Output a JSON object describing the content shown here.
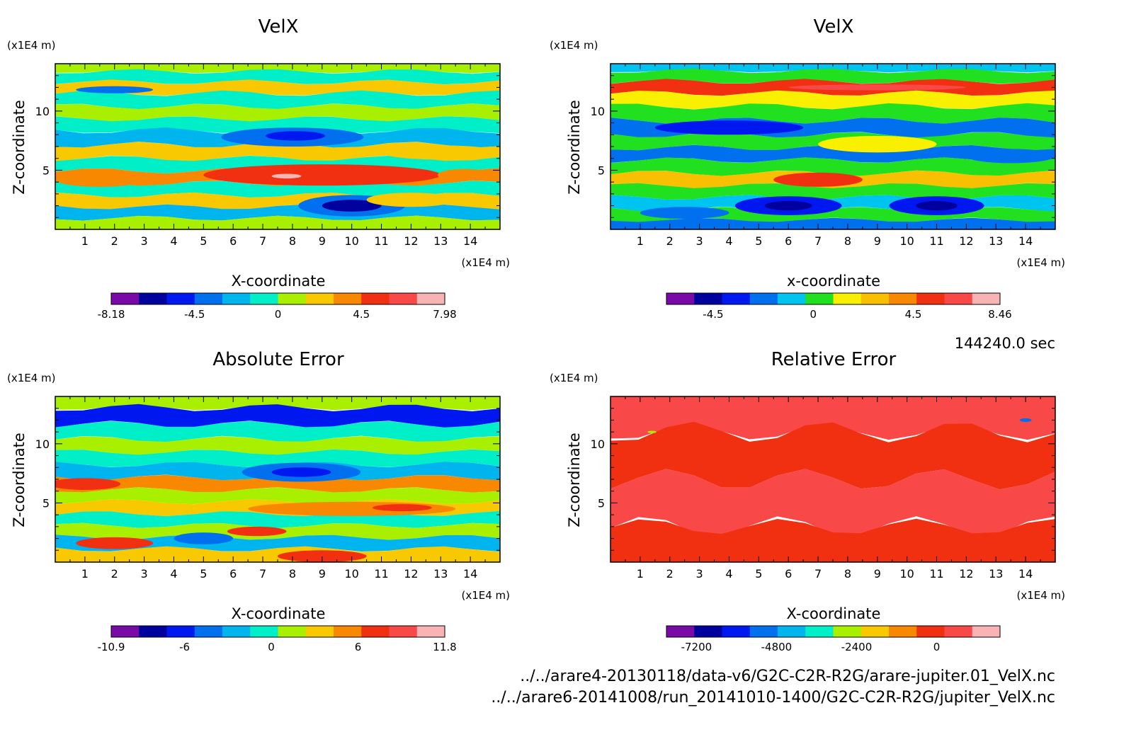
{
  "timestamp": "144240.0 sec",
  "footer": {
    "line1": "../../arare4-20130118/data-v6/G2C-C2R-R2G/arare-jupiter.01_VelX.nc",
    "line2": "../../arare6-20141008/run_20141010-1400/G2C-C2R-R2G/jupiter_VelX.nc"
  },
  "chart_data": [
    {
      "type": "heatmap",
      "title": "VelX",
      "xlabel": "X-coordinate",
      "ylabel": "Z-coordinate",
      "x_unit": "(x1E4 m)",
      "y_unit": "(x1E4 m)",
      "xlim": [
        0,
        15
      ],
      "ylim": [
        0,
        14
      ],
      "x_ticks": [
        "1",
        "2",
        "3",
        "4",
        "5",
        "6",
        "7",
        "8",
        "9",
        "10",
        "11",
        "12",
        "13",
        "14"
      ],
      "y_ticks": [
        "5",
        "10"
      ],
      "colorbar": {
        "labels": [
          "-8.18",
          "-4.5",
          "0",
          "4.5",
          "7.98"
        ],
        "colors": [
          "#7a0aa8",
          "#00009e",
          "#0018f0",
          "#0070ee",
          "#00b4ee",
          "#00eec8",
          "#a8f000",
          "#f8c800",
          "#f88800",
          "#f03010",
          "#f84848",
          "#f8b4b4"
        ]
      },
      "bands": [
        {
          "z": 13.8,
          "color": "#a8f000"
        },
        {
          "z": 12.9,
          "color": "#00eec8"
        },
        {
          "z": 12.0,
          "color": "#f8c800"
        },
        {
          "z": 11.0,
          "color": "#00eec8"
        },
        {
          "z": 9.8,
          "color": "#a8f000"
        },
        {
          "z": 8.9,
          "color": "#00eec8"
        },
        {
          "z": 7.8,
          "color": "#00b4ee"
        },
        {
          "z": 6.5,
          "color": "#f8c800"
        },
        {
          "z": 5.5,
          "color": "#00eec8"
        },
        {
          "z": 4.4,
          "color": "#f88800"
        },
        {
          "z": 3.4,
          "color": "#00eec8"
        },
        {
          "z": 2.4,
          "color": "#f8c800"
        },
        {
          "z": 1.4,
          "color": "#00b4ee"
        },
        {
          "z": 0.5,
          "color": "#a8f000"
        }
      ],
      "blobs": [
        {
          "cx": 9.0,
          "cz": 4.6,
          "rx": 4.0,
          "rz": 0.9,
          "color": "#f03010"
        },
        {
          "cx": 7.8,
          "cz": 4.5,
          "rx": 0.5,
          "rz": 0.2,
          "color": "#f8b4b4"
        },
        {
          "cx": 10.0,
          "cz": 2.0,
          "rx": 1.8,
          "rz": 0.9,
          "color": "#0070ee"
        },
        {
          "cx": 10.0,
          "cz": 2.0,
          "rx": 1.0,
          "rz": 0.5,
          "color": "#00009e"
        },
        {
          "cx": 8.0,
          "cz": 7.8,
          "rx": 2.4,
          "rz": 0.8,
          "color": "#0070ee"
        },
        {
          "cx": 8.1,
          "cz": 7.9,
          "rx": 1.0,
          "rz": 0.4,
          "color": "#0018f0"
        },
        {
          "cx": 13.0,
          "cz": 6.5,
          "rx": 2.0,
          "rz": 0.6,
          "color": "#f8c800"
        },
        {
          "cx": 1.5,
          "cz": 4.2,
          "rx": 1.5,
          "rz": 0.6,
          "color": "#f88800"
        },
        {
          "cx": 12.0,
          "cz": 2.5,
          "rx": 1.5,
          "rz": 0.6,
          "color": "#f8c800"
        },
        {
          "cx": 2.0,
          "cz": 11.8,
          "rx": 1.3,
          "rz": 0.3,
          "color": "#0070ee"
        },
        {
          "cx": 13.8,
          "cz": 4.6,
          "rx": 0.9,
          "rz": 0.5,
          "color": "#f88800"
        }
      ]
    },
    {
      "type": "heatmap",
      "title": "VelX",
      "xlabel": "x-coordinate",
      "ylabel": "Z-coordinate",
      "x_unit": "(x1E4 m)",
      "y_unit": "(x1E4 m)",
      "xlim": [
        0,
        15
      ],
      "ylim": [
        0,
        14
      ],
      "x_ticks": [
        "1",
        "2",
        "3",
        "4",
        "5",
        "6",
        "7",
        "8",
        "9",
        "10",
        "11",
        "12",
        "13",
        "14"
      ],
      "y_ticks": [
        "5",
        "10"
      ],
      "colorbar": {
        "labels": [
          "-4.5",
          "0",
          "4.5",
          "8.46"
        ],
        "colors": [
          "#7a0aa8",
          "#00009e",
          "#0018f0",
          "#0070ee",
          "#00c4f0",
          "#20e020",
          "#f8f000",
          "#f8c000",
          "#f88800",
          "#f03010",
          "#f84848",
          "#f8b4b4"
        ]
      },
      "bands": [
        {
          "z": 13.8,
          "color": "#00c4f0"
        },
        {
          "z": 13.0,
          "color": "#20e020"
        },
        {
          "z": 12.0,
          "color": "#f03010"
        },
        {
          "z": 11.0,
          "color": "#f8f000"
        },
        {
          "z": 9.8,
          "color": "#20e020"
        },
        {
          "z": 8.6,
          "color": "#0070ee"
        },
        {
          "z": 7.4,
          "color": "#20e020"
        },
        {
          "z": 6.4,
          "color": "#0070ee"
        },
        {
          "z": 5.3,
          "color": "#20e020"
        },
        {
          "z": 4.2,
          "color": "#f8c000"
        },
        {
          "z": 3.2,
          "color": "#20e020"
        },
        {
          "z": 2.2,
          "color": "#00c4f0"
        },
        {
          "z": 1.2,
          "color": "#20e020"
        },
        {
          "z": 0.4,
          "color": "#0070ee"
        }
      ],
      "blobs": [
        {
          "cx": 4.0,
          "cz": 8.6,
          "rx": 2.5,
          "rz": 0.6,
          "color": "#0018f0"
        },
        {
          "cx": 9.0,
          "cz": 7.2,
          "rx": 2.0,
          "rz": 0.7,
          "color": "#f8f000"
        },
        {
          "cx": 13.5,
          "cz": 6.2,
          "rx": 1.5,
          "rz": 0.6,
          "color": "#0070ee"
        },
        {
          "cx": 7.0,
          "cz": 4.2,
          "rx": 1.5,
          "rz": 0.6,
          "color": "#f03010"
        },
        {
          "cx": 6.0,
          "cz": 2.0,
          "rx": 1.8,
          "rz": 0.8,
          "color": "#0018f0"
        },
        {
          "cx": 6.0,
          "cz": 2.0,
          "rx": 0.8,
          "rz": 0.4,
          "color": "#00009e"
        },
        {
          "cx": 11.0,
          "cz": 2.0,
          "rx": 1.6,
          "rz": 0.8,
          "color": "#0018f0"
        },
        {
          "cx": 11.0,
          "cz": 2.0,
          "rx": 0.7,
          "rz": 0.4,
          "color": "#00009e"
        },
        {
          "cx": 9.0,
          "cz": 12.0,
          "rx": 3.0,
          "rz": 0.25,
          "color": "#f84848"
        },
        {
          "cx": 2.5,
          "cz": 1.4,
          "rx": 1.5,
          "rz": 0.5,
          "color": "#0070ee"
        }
      ]
    },
    {
      "type": "heatmap",
      "title": "Absolute Error",
      "xlabel": "X-coordinate",
      "ylabel": "Z-coordinate",
      "x_unit": "(x1E4 m)",
      "y_unit": "(x1E4 m)",
      "xlim": [
        0,
        15
      ],
      "ylim": [
        0,
        14
      ],
      "x_ticks": [
        "1",
        "2",
        "3",
        "4",
        "5",
        "6",
        "7",
        "8",
        "9",
        "10",
        "11",
        "12",
        "13",
        "14"
      ],
      "y_ticks": [
        "5",
        "10"
      ],
      "colorbar": {
        "labels": [
          "-10.9",
          "-6",
          "0",
          "6",
          "11.8"
        ],
        "colors": [
          "#7a0aa8",
          "#00009e",
          "#0018f0",
          "#0070ee",
          "#00b4ee",
          "#00eec8",
          "#a8f000",
          "#f8c800",
          "#f88800",
          "#f03010",
          "#f84848",
          "#f8b4b4"
        ]
      },
      "bands": [
        {
          "z": 13.8,
          "color": "#a8f000"
        },
        {
          "z": 12.3,
          "color": "#0018f0"
        },
        {
          "z": 11.0,
          "color": "#00eec8"
        },
        {
          "z": 9.8,
          "color": "#a8f000"
        },
        {
          "z": 8.8,
          "color": "#00eec8"
        },
        {
          "z": 7.7,
          "color": "#00b4ee"
        },
        {
          "z": 6.6,
          "color": "#f88800"
        },
        {
          "z": 5.6,
          "color": "#a8f000"
        },
        {
          "z": 4.6,
          "color": "#f8c800"
        },
        {
          "z": 3.6,
          "color": "#00eec8"
        },
        {
          "z": 2.6,
          "color": "#a8f000"
        },
        {
          "z": 1.6,
          "color": "#00b4ee"
        },
        {
          "z": 0.6,
          "color": "#f8c800"
        }
      ],
      "blobs": [
        {
          "cx": 8.3,
          "cz": 7.6,
          "rx": 2.0,
          "rz": 0.8,
          "color": "#0070ee"
        },
        {
          "cx": 8.3,
          "cz": 7.6,
          "rx": 1.0,
          "rz": 0.4,
          "color": "#0018f0"
        },
        {
          "cx": 10.0,
          "cz": 4.5,
          "rx": 3.5,
          "rz": 0.6,
          "color": "#f88800"
        },
        {
          "cx": 11.7,
          "cz": 4.6,
          "rx": 1.0,
          "rz": 0.3,
          "color": "#f03010"
        },
        {
          "cx": 6.8,
          "cz": 2.6,
          "rx": 1.0,
          "rz": 0.4,
          "color": "#f03010"
        },
        {
          "cx": 9.0,
          "cz": 0.5,
          "rx": 1.5,
          "rz": 0.5,
          "color": "#f03010"
        },
        {
          "cx": 2.0,
          "cz": 1.6,
          "rx": 1.3,
          "rz": 0.5,
          "color": "#f03010"
        },
        {
          "cx": 5.0,
          "cz": 2.0,
          "rx": 1.0,
          "rz": 0.5,
          "color": "#0070ee"
        },
        {
          "cx": 1.0,
          "cz": 6.6,
          "rx": 1.2,
          "rz": 0.5,
          "color": "#f03010"
        }
      ]
    },
    {
      "type": "heatmap",
      "title": "Relative Error",
      "xlabel": "X-coordinate",
      "ylabel": "Z-coordinate",
      "x_unit": "(x1E4 m)",
      "y_unit": "(x1E4 m)",
      "xlim": [
        0,
        15
      ],
      "ylim": [
        0,
        14
      ],
      "x_ticks": [
        "1",
        "2",
        "3",
        "4",
        "5",
        "6",
        "7",
        "8",
        "9",
        "10",
        "11",
        "12",
        "13",
        "14"
      ],
      "y_ticks": [
        "5",
        "10"
      ],
      "colorbar": {
        "labels": [
          "-7200",
          "-4800",
          "-2400",
          "0"
        ],
        "colors": [
          "#7a0aa8",
          "#00009e",
          "#0018f0",
          "#0070ee",
          "#00b4ee",
          "#00eec8",
          "#a8f000",
          "#f8c800",
          "#f88800",
          "#f03010",
          "#f84848",
          "#f8b4b4"
        ]
      },
      "bands": [
        {
          "z": 13.0,
          "color": "#f84848"
        },
        {
          "z": 9.0,
          "color": "#f03010"
        },
        {
          "z": 5.0,
          "color": "#f84848"
        },
        {
          "z": 1.0,
          "color": "#f03010"
        }
      ],
      "blobs": [
        {
          "cx": 14.0,
          "cz": 12.0,
          "rx": 0.2,
          "rz": 0.15,
          "color": "#0070ee"
        },
        {
          "cx": 1.4,
          "cz": 11.0,
          "rx": 0.15,
          "rz": 0.1,
          "color": "#a8f000"
        }
      ]
    }
  ]
}
